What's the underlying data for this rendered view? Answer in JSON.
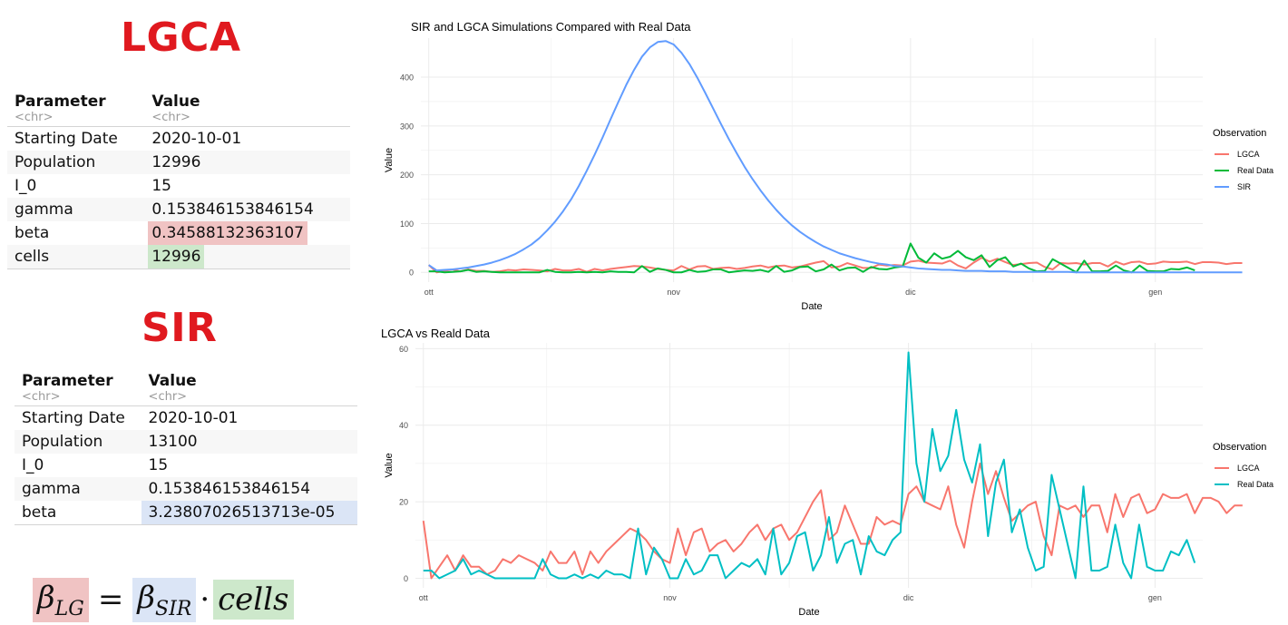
{
  "lgca_section": {
    "title": "LGCA",
    "table": {
      "header": {
        "param": "Parameter",
        "value": "Value",
        "param_type": "<chr>",
        "value_type": "<chr>"
      },
      "rows": [
        {
          "name": "Starting Date",
          "value": "2020-10-01"
        },
        {
          "name": "Population",
          "value": "12996"
        },
        {
          "name": "I_0",
          "value": "15"
        },
        {
          "name": "gamma",
          "value": "0.153846153846154"
        },
        {
          "name": "beta",
          "value": "0.34588132363107"
        },
        {
          "name": "cells",
          "value": "12996"
        }
      ]
    }
  },
  "sir_section": {
    "title": "SIR",
    "table": {
      "header": {
        "param": "Parameter",
        "value": "Value",
        "param_type": "<chr>",
        "value_type": "<chr>"
      },
      "rows": [
        {
          "name": "Starting Date",
          "value": "2020-10-01"
        },
        {
          "name": "Population",
          "value": "13100"
        },
        {
          "name": "I_0",
          "value": "15"
        },
        {
          "name": "gamma",
          "value": "0.153846153846154"
        },
        {
          "name": "beta",
          "value": "3.23807026513713e-05"
        }
      ]
    }
  },
  "formula": {
    "lhs_base": "β",
    "lhs_sub": "LG",
    "equals": "=",
    "rhs_base": "β",
    "rhs_sub": "SIR",
    "dot": "·",
    "cells": "cells",
    "colors": {
      "lhs": "#f0c3c3",
      "sir": "#dbe5f6",
      "cells": "#cde8cb"
    }
  },
  "chart_data": [
    {
      "type": "line",
      "title": "SIR and LGCA Simulations Compared with Real Data",
      "xlabel": "Date",
      "ylabel": "Value",
      "x_start": "2020-10-01",
      "x_step_days": 1,
      "xlim_days": [
        -1,
        98
      ],
      "x_ticks": [
        {
          "day": 0,
          "label": "ott"
        },
        {
          "day": 31,
          "label": "nov"
        },
        {
          "day": 61,
          "label": "dic"
        },
        {
          "day": 92,
          "label": "gen"
        }
      ],
      "ylim": [
        -20,
        480
      ],
      "y_ticks": [
        0,
        100,
        200,
        300,
        400
      ],
      "legend_title": "Observation",
      "legend_position": "right",
      "series": [
        {
          "name": "LGCA",
          "color": "#f8766d",
          "values": [
            15,
            0,
            3,
            6,
            2,
            6,
            3,
            3,
            1,
            2,
            5,
            4,
            6,
            5,
            4,
            2,
            7,
            4,
            4,
            7,
            1,
            7,
            4,
            7,
            9,
            11,
            13,
            12,
            10,
            7,
            5,
            4,
            13,
            6,
            12,
            13,
            7,
            9,
            10,
            7,
            9,
            12,
            14,
            10,
            13,
            14,
            10,
            12,
            16,
            20,
            23,
            10,
            12,
            19,
            14,
            9,
            9,
            16,
            14,
            15,
            14,
            22,
            24,
            20,
            19,
            18,
            24,
            14,
            8,
            20,
            30,
            22,
            28,
            21,
            15,
            17,
            19,
            20,
            11,
            6,
            19,
            18,
            19,
            16,
            19,
            19,
            12,
            22,
            16,
            21,
            22,
            17,
            18,
            22,
            21,
            21,
            22,
            17,
            21,
            21,
            20,
            17,
            19,
            19
          ]
        },
        {
          "name": "Real Data",
          "color": "#00ba38",
          "values": [
            2,
            2,
            0,
            1,
            2,
            5,
            1,
            2,
            1,
            0,
            0,
            0,
            0,
            0,
            0,
            5,
            1,
            0,
            0,
            1,
            0,
            1,
            0,
            2,
            1,
            1,
            0,
            13,
            1,
            8,
            5,
            0,
            0,
            5,
            1,
            2,
            6,
            6,
            0,
            2,
            4,
            3,
            5,
            1,
            13,
            1,
            4,
            11,
            12,
            2,
            6,
            16,
            4,
            9,
            10,
            1,
            11,
            7,
            6,
            10,
            12,
            59,
            30,
            20,
            39,
            28,
            32,
            44,
            31,
            25,
            35,
            11,
            25,
            31,
            12,
            18,
            8,
            2,
            3,
            27,
            18,
            9,
            0,
            24,
            2,
            2,
            3,
            14,
            4,
            0,
            14,
            3,
            2,
            2,
            7,
            6,
            10,
            4
          ]
        },
        {
          "name": "SIR",
          "color": "#619cff",
          "values": [
            15,
            4,
            5,
            6,
            8,
            10,
            13,
            16,
            20,
            25,
            31,
            38,
            47,
            57,
            70,
            86,
            104,
            125,
            149,
            177,
            208,
            241,
            276,
            313,
            349,
            384,
            415,
            442,
            461,
            472,
            474,
            467,
            450,
            427,
            399,
            368,
            336,
            304,
            273,
            244,
            216,
            191,
            168,
            147,
            128,
            111,
            96,
            83,
            72,
            62,
            53,
            46,
            39,
            34,
            29,
            25,
            21,
            18,
            16,
            13,
            12,
            10,
            8,
            7,
            6,
            5,
            5,
            4,
            3,
            3,
            3,
            2,
            2,
            2,
            1,
            1,
            1,
            1,
            1,
            1,
            1,
            1,
            0,
            0,
            0,
            0,
            0,
            0,
            0,
            0,
            0,
            0,
            0,
            0,
            0,
            0,
            0,
            0,
            0,
            0,
            0,
            0,
            0,
            0
          ]
        }
      ]
    },
    {
      "type": "line",
      "title": "LGCA vs Reald Data",
      "xlabel": "Date",
      "ylabel": "Value",
      "x_start": "2020-10-01",
      "x_step_days": 1,
      "xlim_days": [
        -1,
        98
      ],
      "x_ticks": [
        {
          "day": 0,
          "label": "ott"
        },
        {
          "day": 31,
          "label": "nov"
        },
        {
          "day": 61,
          "label": "dic"
        },
        {
          "day": 92,
          "label": "gen"
        }
      ],
      "ylim": [
        -2.5,
        61.5
      ],
      "y_ticks": [
        0,
        20,
        40,
        60
      ],
      "legend_title": "Observation",
      "legend_position": "right",
      "series": [
        {
          "name": "LGCA",
          "color": "#f8766d",
          "values": [
            15,
            0,
            3,
            6,
            2,
            6,
            3,
            3,
            1,
            2,
            5,
            4,
            6,
            5,
            4,
            2,
            7,
            4,
            4,
            7,
            1,
            7,
            4,
            7,
            9,
            11,
            13,
            12,
            10,
            7,
            5,
            4,
            13,
            6,
            12,
            13,
            7,
            9,
            10,
            7,
            9,
            12,
            14,
            10,
            13,
            14,
            10,
            12,
            16,
            20,
            23,
            10,
            12,
            19,
            14,
            9,
            9,
            16,
            14,
            15,
            14,
            22,
            24,
            20,
            19,
            18,
            24,
            14,
            8,
            20,
            30,
            22,
            28,
            21,
            15,
            17,
            19,
            20,
            11,
            6,
            19,
            18,
            19,
            16,
            19,
            19,
            12,
            22,
            16,
            21,
            22,
            17,
            18,
            22,
            21,
            21,
            22,
            17,
            21,
            21,
            20,
            17,
            19,
            19
          ]
        },
        {
          "name": "Real Data",
          "color": "#00bfc4",
          "values": [
            2,
            2,
            0,
            1,
            2,
            5,
            1,
            2,
            1,
            0,
            0,
            0,
            0,
            0,
            0,
            5,
            1,
            0,
            0,
            1,
            0,
            1,
            0,
            2,
            1,
            1,
            0,
            13,
            1,
            8,
            5,
            0,
            0,
            5,
            1,
            2,
            6,
            6,
            0,
            2,
            4,
            3,
            5,
            1,
            13,
            1,
            4,
            11,
            12,
            2,
            6,
            16,
            4,
            9,
            10,
            1,
            11,
            7,
            6,
            10,
            12,
            59,
            30,
            20,
            39,
            28,
            32,
            44,
            31,
            25,
            35,
            11,
            25,
            31,
            12,
            18,
            8,
            2,
            3,
            27,
            18,
            9,
            0,
            24,
            2,
            2,
            3,
            14,
            4,
            0,
            14,
            3,
            2,
            2,
            7,
            6,
            10,
            4
          ]
        }
      ]
    }
  ]
}
